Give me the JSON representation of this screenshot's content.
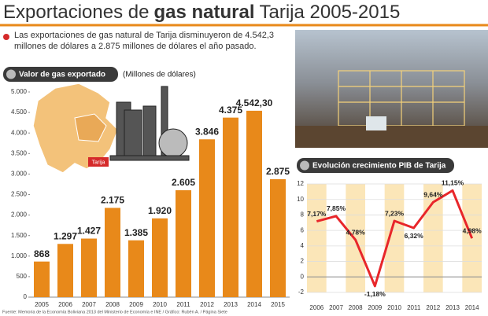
{
  "header": {
    "title": [
      "Exportaciones de",
      "gas natural",
      "Tarija 2005-2015"
    ],
    "subtitle": "Las exportaciones de gas natural de Tarija disminuyeron de 4.542,3 millones de dólares a 2.875 millones de dólares el año pasado."
  },
  "map_label": "Tarija",
  "source": "Fuente: Memoria de la Economía Boliviana 2013 del Ministerio de Economía e INE / Gráfico: Rubén A. / Página Siete",
  "chart_data": [
    {
      "type": "bar",
      "title": "Valor de gas exportado",
      "unit_label": "(Millones de dólares)",
      "categories": [
        "2005",
        "2006",
        "2007",
        "2008",
        "2009",
        "2010",
        "2011",
        "2012",
        "2013",
        "2014",
        "2015"
      ],
      "values": [
        868,
        1297,
        1427,
        2175,
        1385,
        1920,
        2605,
        3846,
        4375,
        4542.3,
        2875
      ],
      "value_labels": [
        "868",
        "1.297",
        "1.427",
        "2.175",
        "1.385",
        "1.920",
        "2.605",
        "3.846",
        "4.375",
        "4.542,30",
        "2.875"
      ],
      "color": "#e8891a",
      "ylim": [
        0,
        5000
      ],
      "yticks": [
        0,
        500,
        {
          "value": 1000,
          "label": "1.000"
        },
        {
          "value": 1500,
          "label": "1.500"
        },
        {
          "value": 2000,
          "label": "2.000"
        },
        {
          "value": 2500,
          "label": "2.500"
        },
        {
          "value": 3000,
          "label": "3.000"
        },
        {
          "value": 3500,
          "label": "3.500"
        },
        {
          "value": 4000,
          "label": "4.000"
        },
        {
          "value": 4500,
          "label": "4.500"
        },
        {
          "value": 5000,
          "label": "5.000"
        }
      ],
      "grid": false
    },
    {
      "type": "line",
      "title": "Evolución crecimiento PIB de Tarija",
      "categories": [
        "2006",
        "2007",
        "2008",
        "2009",
        "2010",
        "2011",
        "2012",
        "2013",
        "2014"
      ],
      "values": [
        7.17,
        7.85,
        4.78,
        -1.18,
        7.23,
        6.32,
        9.64,
        11.15,
        4.98
      ],
      "value_labels": [
        "7,17%",
        "7,85%",
        "4,78%",
        "-1,18%",
        "7,23%",
        "6,32%",
        "9,64%",
        "11,15%",
        "4,98%"
      ],
      "color": "#e8262a",
      "ylim": [
        -2,
        12
      ],
      "yticks": [
        -2,
        0,
        2,
        4,
        6,
        8,
        10,
        12
      ],
      "grid": true
    }
  ]
}
